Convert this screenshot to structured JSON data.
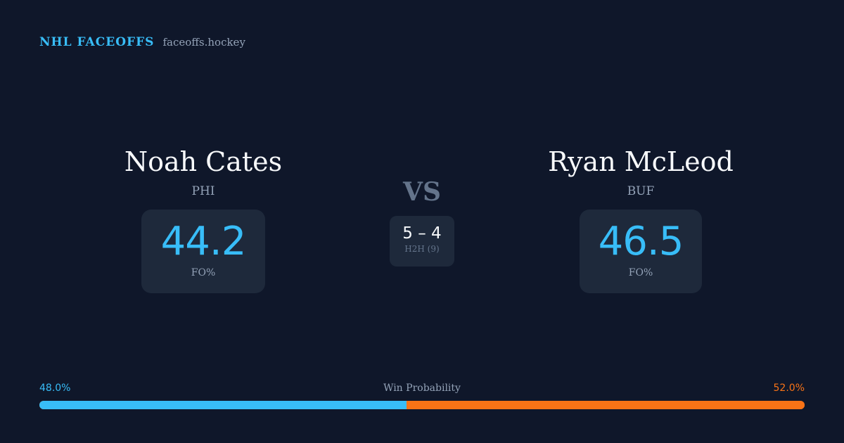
{
  "brand": {
    "title": "NHL FACEOFFS",
    "site": "faceoffs.hockey"
  },
  "left": {
    "name": "Noah Cates",
    "team": "PHI",
    "fo": "44.2",
    "fo_label": "FO%"
  },
  "right": {
    "name": "Ryan McLeod",
    "team": "BUF",
    "fo": "46.5",
    "fo_label": "FO%"
  },
  "vs": "VS",
  "h2h": {
    "score": "5 – 4",
    "label": "H2H (9)"
  },
  "win_probability": {
    "label": "Win Probability",
    "left": "48.0%",
    "right": "52.0%",
    "left_value": 48.0,
    "right_value": 52.0
  },
  "colors": {
    "left": "#38bdf8",
    "right": "#f97316",
    "background": "#0f172a"
  }
}
